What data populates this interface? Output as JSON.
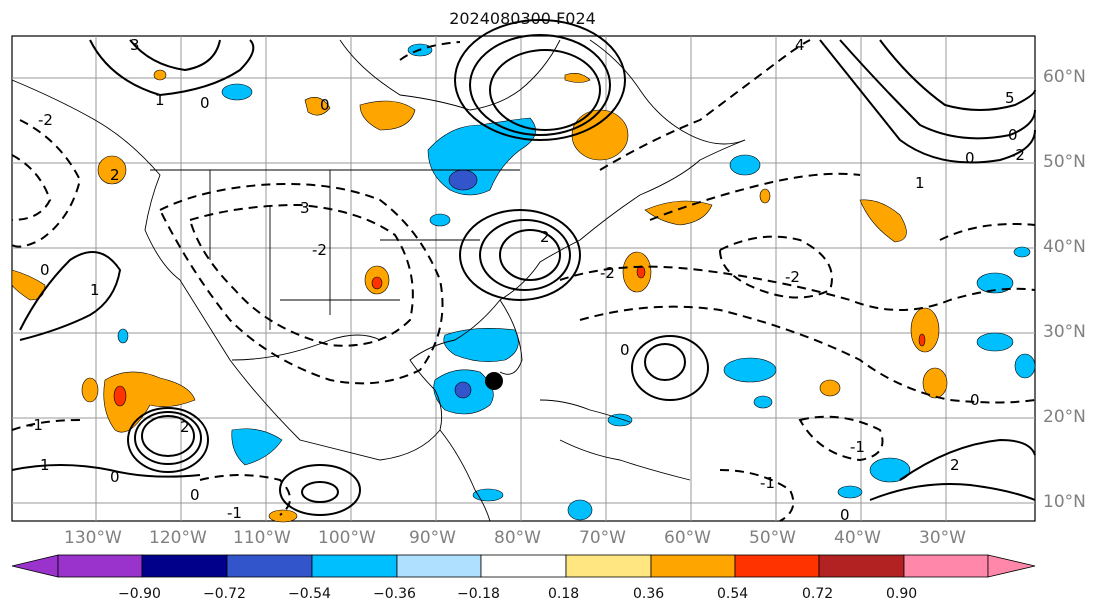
{
  "title": "2024080300 F024",
  "lon_labels": [
    "130°W",
    "120°W",
    "110°W",
    "100°W",
    "90°W",
    "80°W",
    "70°W",
    "60°W",
    "50°W",
    "40°W",
    "30°W"
  ],
  "lat_labels": [
    "60°N",
    "50°N",
    "40°N",
    "30°N",
    "20°N",
    "10°N"
  ],
  "contour_labels": [
    "0",
    "-1",
    "-2",
    "1",
    "2",
    "3",
    "4",
    "5"
  ],
  "colorbar": {
    "ticks": [
      "−0.90",
      "−0.72",
      "−0.54",
      "−0.36",
      "−0.18",
      "0.18",
      "0.36",
      "0.54",
      "0.72",
      "0.90"
    ],
    "colors": [
      "#9933cc",
      "#00008b",
      "#3355cc",
      "#00bfff",
      "#b0e0ff",
      "#ffffff",
      "#ffe680",
      "#ffa500",
      "#ff3300",
      "#b22222",
      "#ff88aa"
    ]
  },
  "marker": "storm-center-dot"
}
